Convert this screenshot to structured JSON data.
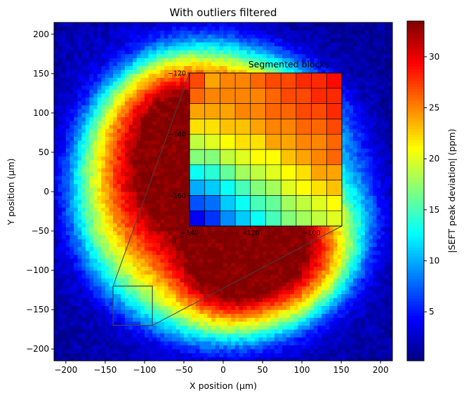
{
  "chart_data": [
    {
      "type": "heatmap",
      "title": "With outliers filtered",
      "xlabel": "X position (µm)",
      "ylabel": "Y position (µm)",
      "xlim": [
        -215,
        215
      ],
      "ylim": [
        -215,
        215
      ],
      "xticks": [
        -200,
        -150,
        -100,
        -50,
        0,
        50,
        100,
        150,
        200
      ],
      "yticks": [
        -200,
        -150,
        -100,
        -50,
        0,
        50,
        100,
        150,
        200
      ],
      "grid": false,
      "cell_size": 5,
      "colormap": "jet",
      "colorbar": {
        "label": "|SEFT peak deviation| (ppm)",
        "range": [
          0.2,
          33.5
        ],
        "ticks": [
          5,
          10,
          15,
          20,
          25,
          30
        ]
      },
      "lobes": [
        {
          "center": [
            -85,
            20
          ],
          "radius": [
            110,
            170
          ],
          "peak": 32.5
        },
        {
          "center": [
            85,
            -70
          ],
          "radius": [
            100,
            110
          ],
          "peak": 31.5
        },
        {
          "center": [
            30,
            110
          ],
          "radius": [
            110,
            70
          ],
          "peak": 21
        },
        {
          "center": [
            0,
            -120
          ],
          "radius": [
            70,
            70
          ],
          "peak": 14
        }
      ],
      "highlight_box": {
        "x": [
          -140,
          -90
        ],
        "y": [
          -170,
          -120
        ]
      }
    },
    {
      "type": "heatmap",
      "title": "Segmented blocks",
      "xlim": [
        -140,
        -90
      ],
      "ylim": [
        -170,
        -120
      ],
      "xticks": [
        -140,
        -120,
        -100
      ],
      "yticks": [
        -120,
        -140,
        -160
      ],
      "grid": true,
      "cell_size": 5,
      "colormap": "jet",
      "values": [
        [
          27,
          24,
          25,
          25,
          26,
          27,
          27,
          28,
          28,
          29
        ],
        [
          26,
          25,
          25,
          25,
          25,
          26,
          27,
          27,
          28,
          28
        ],
        [
          24,
          24,
          24,
          25,
          25,
          26,
          26,
          27,
          27,
          28
        ],
        [
          22,
          22,
          23,
          23,
          24,
          25,
          25,
          26,
          26,
          27
        ],
        [
          19,
          20,
          21,
          22,
          22,
          24,
          24,
          25,
          25,
          26
        ],
        [
          17,
          17,
          19,
          20,
          21,
          21,
          23,
          24,
          25,
          26
        ],
        [
          13,
          14,
          16,
          18,
          19,
          20,
          21,
          22,
          24,
          24
        ],
        [
          10,
          11,
          13,
          15,
          17,
          18,
          20,
          21,
          22,
          23
        ],
        [
          7,
          8,
          11,
          13,
          15,
          16,
          18,
          19,
          20,
          21
        ],
        [
          4,
          6,
          9,
          11,
          13,
          15,
          17,
          18,
          19,
          20
        ]
      ]
    }
  ]
}
